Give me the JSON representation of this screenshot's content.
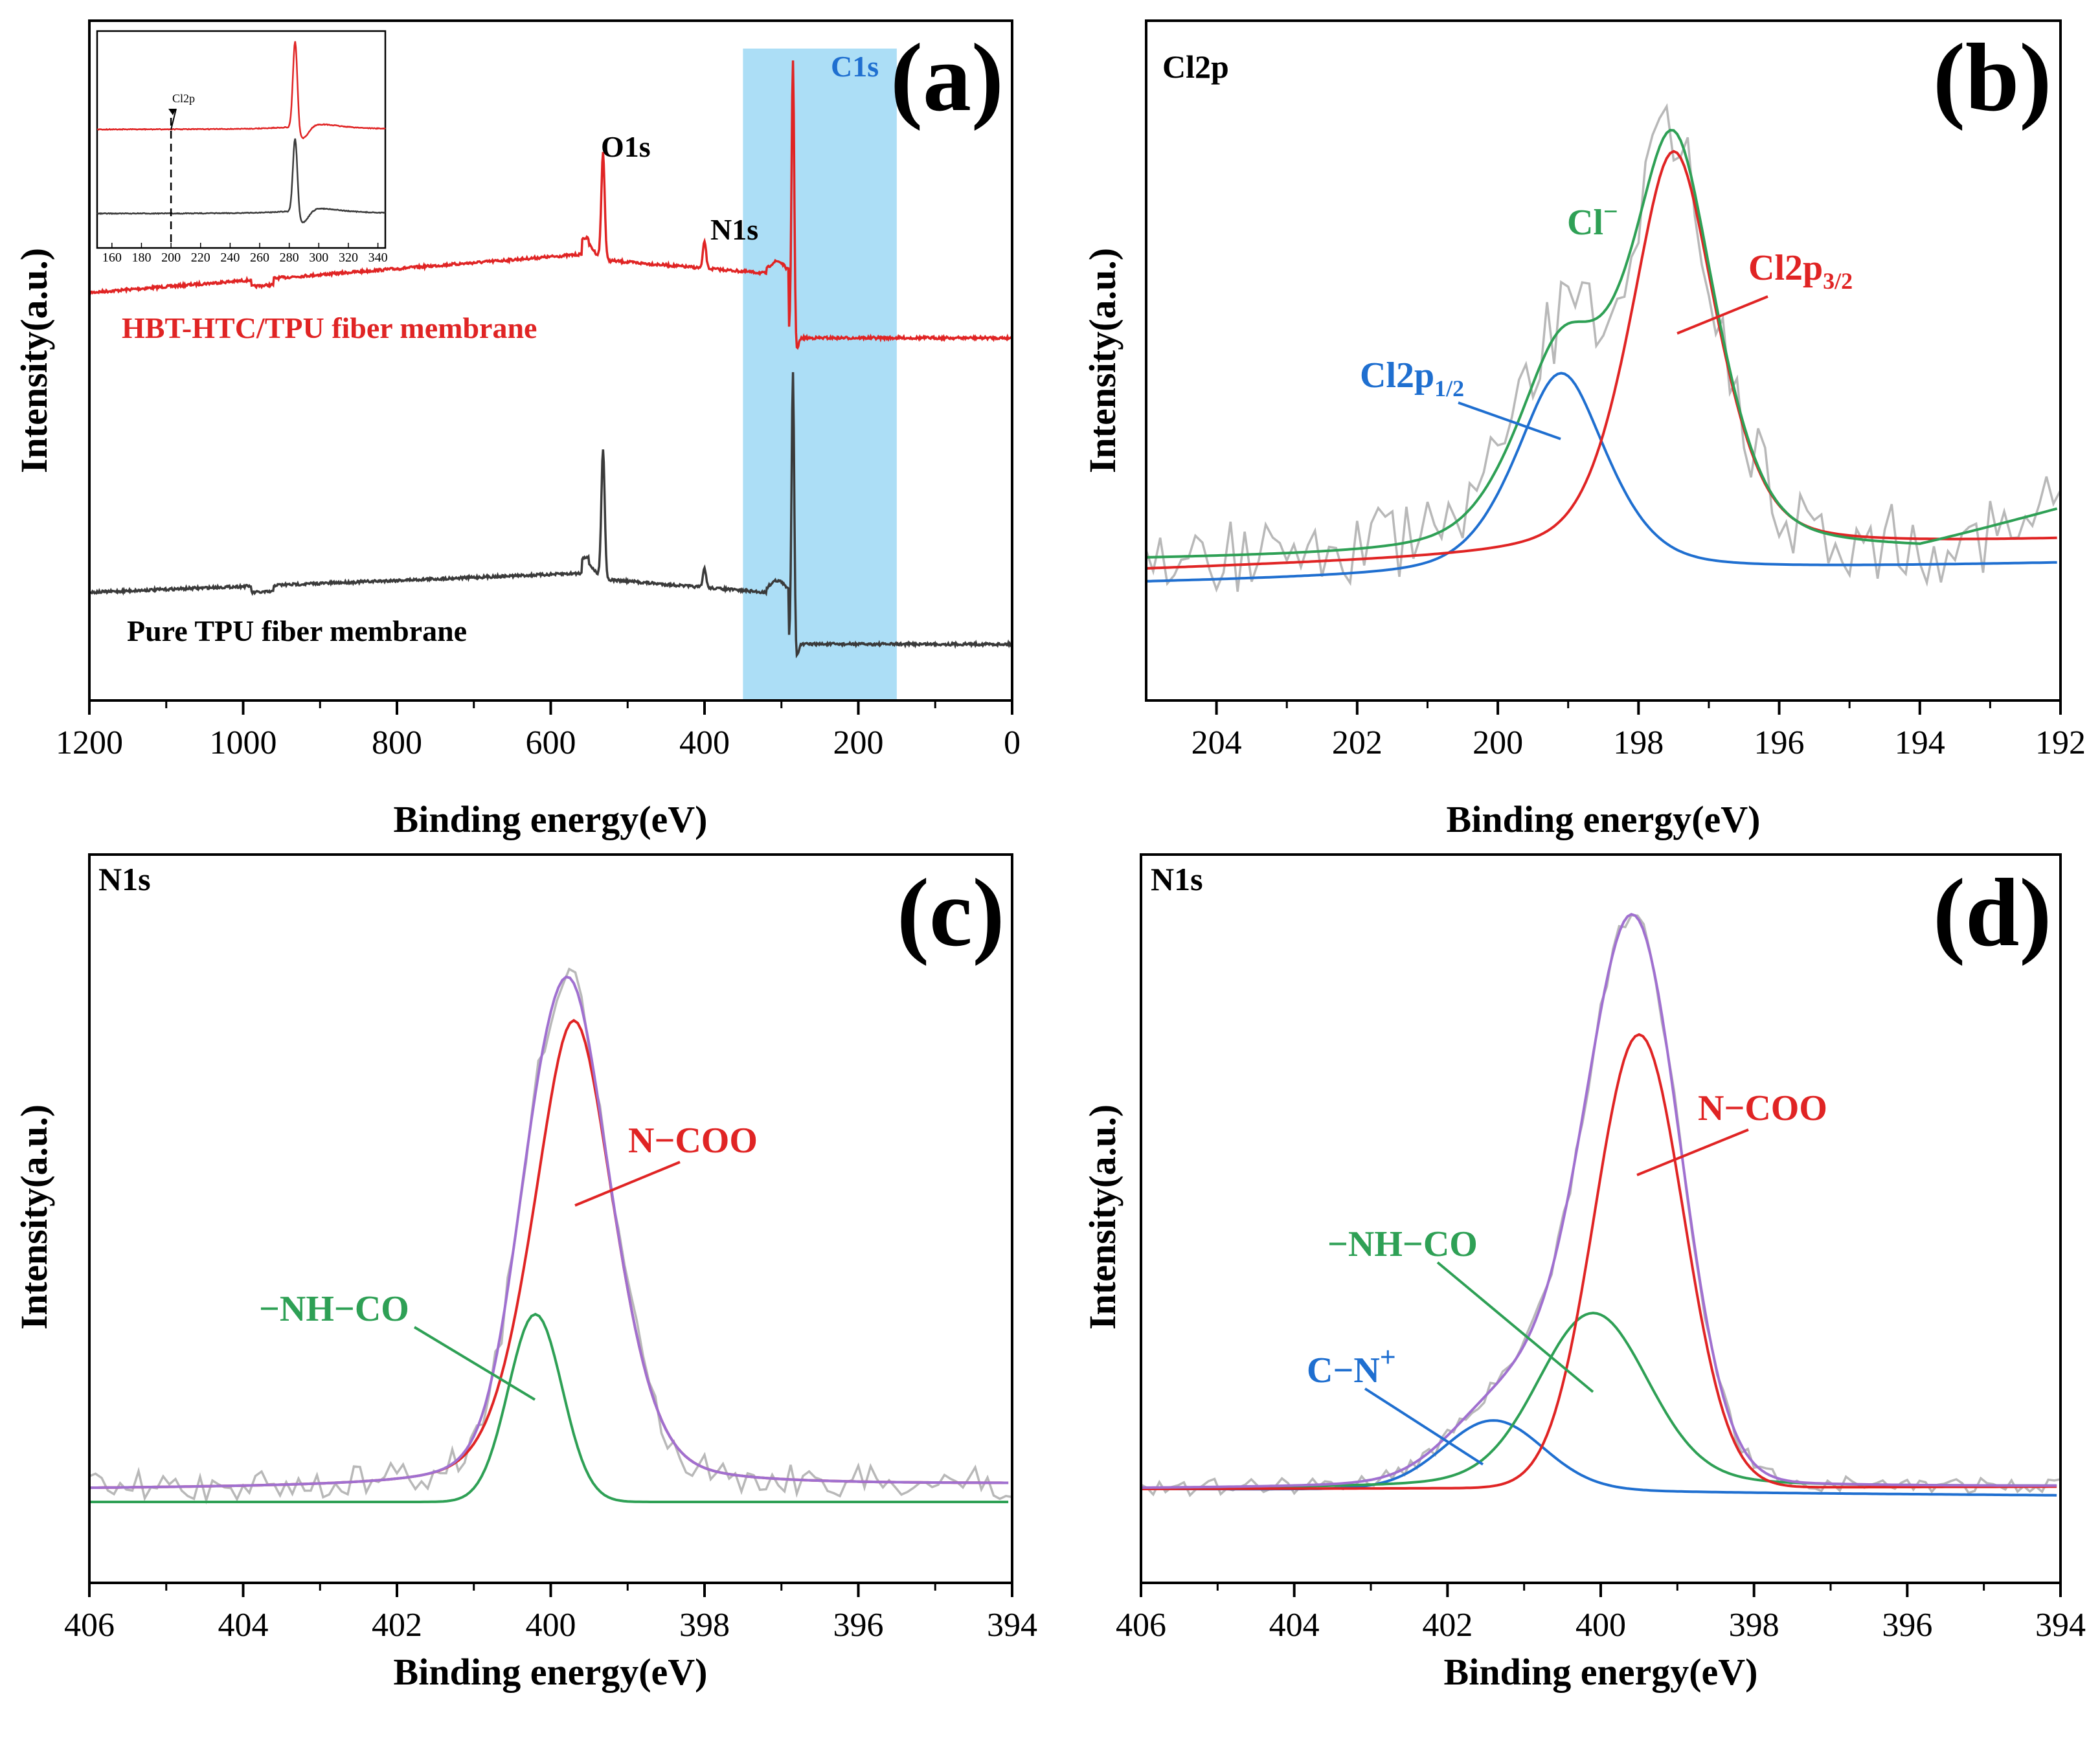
{
  "figure": {
    "xlabel": "Binding energy(eV)",
    "ylabel": "Intensity(a.u.)"
  },
  "colors": {
    "raw": "#b8b8b8",
    "red": "#e02424",
    "green": "#2ea055",
    "blue": "#1f6fd0",
    "purple": "#a070d0",
    "dark": "#3a3a3a",
    "highlight": "#9ed8f5"
  },
  "chart_data": [
    {
      "id": "a",
      "type": "line",
      "letter": "(a)",
      "xlim": [
        1200,
        0
      ],
      "xticks": [
        1200,
        1000,
        800,
        600,
        400,
        200,
        0
      ],
      "highlight_range": [
        350,
        150
      ],
      "series": [
        {
          "name": "HBT-HTC/TPU fiber membrane",
          "color": "red"
        },
        {
          "name": "Pure TPU fiber membrane",
          "color": "dark"
        }
      ],
      "peak_labels": [
        {
          "text": "O1s",
          "x": 532
        },
        {
          "text": "N1s",
          "x": 400
        },
        {
          "text": "C1s",
          "x": 285
        }
      ],
      "inset": {
        "xlim": [
          150,
          345
        ],
        "xticks": [
          160,
          180,
          200,
          220,
          240,
          260,
          280,
          300,
          320,
          340
        ],
        "marker_x": 200,
        "marker_label": "Cl2p"
      }
    },
    {
      "id": "b",
      "type": "line",
      "letter": "(b)",
      "corner_label": "Cl2p",
      "xlim": [
        205,
        192
      ],
      "xticks": [
        204,
        202,
        200,
        198,
        196,
        194,
        192
      ],
      "components": [
        {
          "name": "Cl2p3/2",
          "label_main": "Cl2p",
          "label_sub": "3/2",
          "center": 197.5,
          "color": "red"
        },
        {
          "name": "Cl2p1/2",
          "label_main": "Cl2p",
          "label_sub": "1/2",
          "center": 199.1,
          "color": "blue"
        },
        {
          "name": "Cl⁻",
          "label_main": "Cl",
          "label_sup": "−",
          "color": "green",
          "role": "envelope"
        }
      ]
    },
    {
      "id": "c",
      "type": "line",
      "letter": "(c)",
      "corner_label": "N1s",
      "xlim": [
        406,
        394
      ],
      "xticks": [
        406,
        404,
        402,
        400,
        398,
        396,
        394
      ],
      "components": [
        {
          "name": "N−COO",
          "center": 399.7,
          "color": "red"
        },
        {
          "name": "−NH−CO",
          "center": 400.2,
          "color": "green"
        },
        {
          "name": "envelope",
          "color": "purple"
        }
      ]
    },
    {
      "id": "d",
      "type": "line",
      "letter": "(d)",
      "corner_label": "N1s",
      "xlim": [
        406,
        394
      ],
      "xticks": [
        406,
        404,
        402,
        400,
        398,
        396,
        394
      ],
      "components": [
        {
          "name": "N−COO",
          "center": 399.5,
          "color": "red"
        },
        {
          "name": "−NH−CO",
          "center": 400.1,
          "color": "green"
        },
        {
          "name": "C−N+",
          "label_main": "C−N",
          "label_sup": "+",
          "center": 401.4,
          "color": "blue"
        },
        {
          "name": "envelope",
          "color": "purple"
        }
      ]
    }
  ]
}
